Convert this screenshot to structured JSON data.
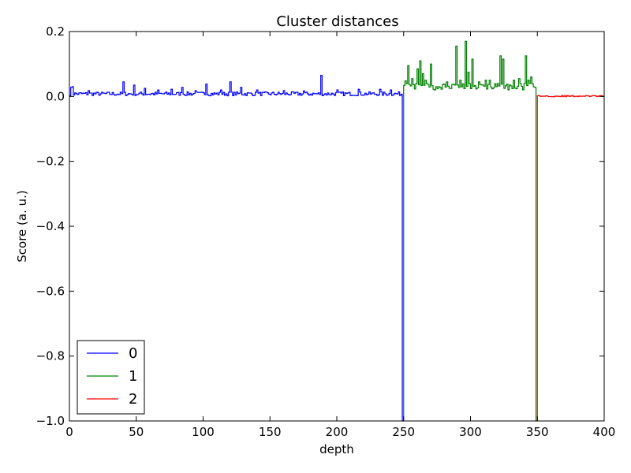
{
  "chart_data": {
    "type": "line",
    "title": "Cluster distances",
    "xlabel": "depth",
    "ylabel": "Score (a. u.)",
    "xlim": [
      0,
      400
    ],
    "ylim": [
      -1.0,
      0.2
    ],
    "grid": false,
    "legend_position": "lower-left",
    "drawstyle": "steps",
    "xticks": [
      "0",
      "50",
      "100",
      "150",
      "200",
      "250",
      "300",
      "350",
      "400"
    ],
    "yticks": [
      "−1.0",
      "−0.8",
      "−0.6",
      "−0.4",
      "−0.2",
      "0.0",
      "0.2"
    ],
    "series": [
      {
        "name": "0",
        "color": "#0000ff",
        "x_start": 0,
        "x_end": 249,
        "baseline": 0.008,
        "jitter": 0.012,
        "seed": 7,
        "spikes": [
          [
            1,
            0.028
          ],
          [
            2,
            0.03
          ],
          [
            14,
            0.018
          ],
          [
            40,
            0.045
          ],
          [
            48,
            0.035
          ],
          [
            56,
            0.025
          ],
          [
            66,
            0.02
          ],
          [
            76,
            0.022
          ],
          [
            84,
            0.028
          ],
          [
            94,
            0.018
          ],
          [
            102,
            0.038
          ],
          [
            113,
            0.02
          ],
          [
            120,
            0.045
          ],
          [
            128,
            0.028
          ],
          [
            140,
            0.02
          ],
          [
            160,
            0.018
          ],
          [
            175,
            0.017
          ],
          [
            188,
            0.065
          ],
          [
            200,
            0.02
          ],
          [
            216,
            0.022
          ],
          [
            232,
            0.022
          ],
          [
            240,
            0.02
          ]
        ],
        "end_drop": -1.0
      },
      {
        "name": "1",
        "color": "#008000",
        "x_start": 249,
        "x_end": 349,
        "baseline": 0.03,
        "jitter": 0.02,
        "seed": 13,
        "spikes": [
          [
            251,
            0.048
          ],
          [
            253,
            0.095
          ],
          [
            256,
            0.055
          ],
          [
            260,
            0.085
          ],
          [
            262,
            0.11
          ],
          [
            264,
            0.07
          ],
          [
            266,
            0.05
          ],
          [
            270,
            0.1
          ],
          [
            274,
            0.03
          ],
          [
            282,
            0.045
          ],
          [
            289,
            0.155
          ],
          [
            292,
            0.05
          ],
          [
            296,
            0.17
          ],
          [
            298,
            0.075
          ],
          [
            301,
            0.115
          ],
          [
            306,
            0.045
          ],
          [
            311,
            0.05
          ],
          [
            314,
            0.05
          ],
          [
            322,
            0.125
          ],
          [
            324,
            0.115
          ],
          [
            332,
            0.05
          ],
          [
            336,
            0.055
          ],
          [
            341,
            0.125
          ],
          [
            343,
            0.05
          ],
          [
            345,
            0.06
          ]
        ],
        "start_value": -1.0,
        "end_drop": -1.0
      },
      {
        "name": "2",
        "color": "#ff0000",
        "x_start": 349,
        "x_end": 400,
        "baseline": 0.001,
        "jitter": 0.004,
        "seed": 29,
        "spikes": [],
        "start_value": -1.0
      }
    ]
  }
}
